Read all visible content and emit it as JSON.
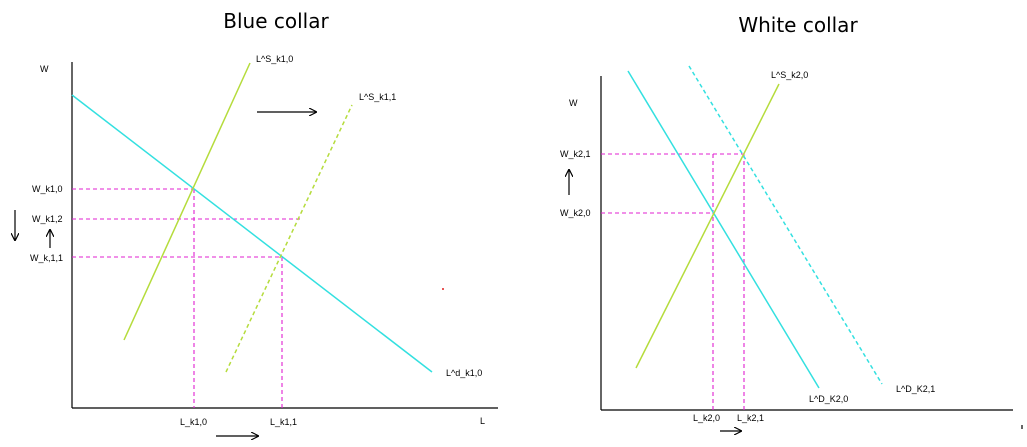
{
  "left": {
    "title": "Blue collar",
    "w_axis_label": "W",
    "l_axis_label": "L",
    "supply_initial": "L^S_k1,0",
    "supply_shifted": "L^S_k1,1",
    "demand": "L^d_k1,0",
    "wage_0": "W_k1,0",
    "wage_2": "W_k1,2",
    "wage_1": "W_k,1,1",
    "quantity_0": "L_k1,0",
    "quantity_1": "L_k1,1"
  },
  "right": {
    "title": "White collar",
    "w_axis_label": "W",
    "supply": "L^S_k2,0",
    "demand_initial": "L^D_K2,0",
    "demand_shifted": "L^D_K2,1",
    "wage_1": "W_k2,1",
    "wage_0": "W_k2,0",
    "quantity_0": "L_k2,0",
    "quantity_1": "L_k2,1"
  },
  "colors": {
    "demand": "#33e0e0",
    "supply": "#b5dc3c",
    "guide": "#e020d0"
  }
}
